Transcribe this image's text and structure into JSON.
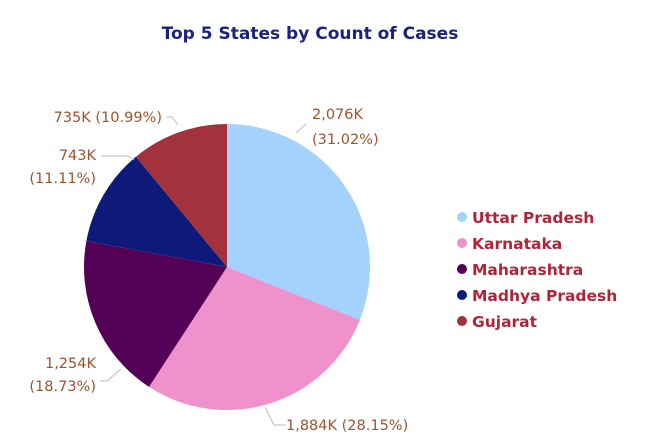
{
  "chart_data": {
    "type": "pie",
    "title": "Top 5 States by Count of Cases",
    "categories": [
      "Uttar Pradesh",
      "Karnataka",
      "Maharashtra",
      "Madhya Pradesh",
      "Gujarat"
    ],
    "values": [
      2076,
      1884,
      1254,
      743,
      735
    ],
    "value_labels": [
      "2,076K",
      "1,884K",
      "1,254K",
      "743K",
      "735K"
    ],
    "percent_labels": [
      "(31.02%)",
      "(28.15%)",
      "(18.73%)",
      "(11.11%)",
      "(10.99%)"
    ],
    "colors": [
      "#a3d2ff",
      "#ef92cc",
      "#550057",
      "#0e1a7a",
      "#a3323c"
    ],
    "legend_position": "right",
    "start_angle": "12 o'clock",
    "direction": "clockwise"
  }
}
